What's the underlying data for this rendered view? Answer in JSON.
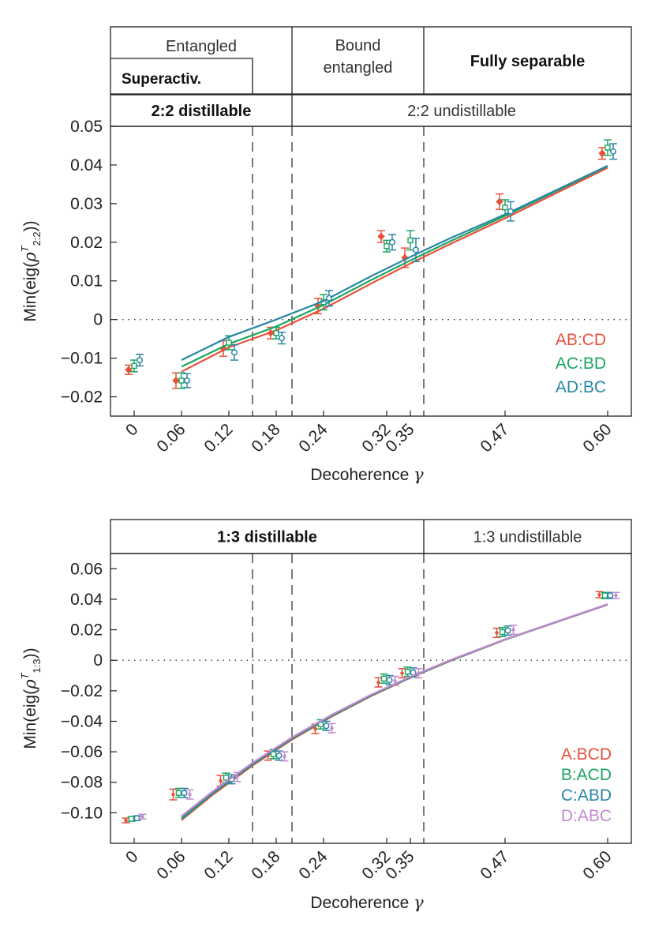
{
  "colors": {
    "red": "#e8503a",
    "green": "#1aa561",
    "teal": "#2a86a5",
    "purple": "#c48ad0",
    "frame": "#222222"
  },
  "chart_data": [
    {
      "type": "scatter",
      "title": "",
      "xlabel": "Decoherence",
      "xlabel_symbol": "γ",
      "ylabel": "Min(eig(ρ^T 2:2))",
      "ylabel_parts": {
        "prefix": "Min(eig(",
        "rho": "ρ",
        "sup": "T",
        "sub": "2:2",
        "suffix": "))"
      },
      "xlim": [
        -0.03,
        0.63
      ],
      "ylim": [
        -0.025,
        0.05
      ],
      "x_ticks": [
        0,
        0.06,
        0.12,
        0.18,
        0.24,
        0.32,
        0.35,
        0.47,
        0.6
      ],
      "x_tick_labels": [
        "0",
        "0.06",
        "0.12",
        "0.18",
        "0.24",
        "0.32",
        "0.35",
        "0.47",
        "0.60"
      ],
      "y_ticks": [
        -0.02,
        -0.01,
        0,
        0.01,
        0.02,
        0.03,
        0.04,
        0.05
      ],
      "y_tick_labels": [
        "−0.02",
        "−0.01",
        "0",
        "0.01",
        "0.02",
        "0.03",
        "0.04",
        "0.05"
      ],
      "zero_line": true,
      "vertical_dashed_lines": [
        0.15,
        0.2,
        0.367
      ],
      "regions_top": [
        {
          "label": "Entangled",
          "bold": false,
          "x0": -0.03,
          "x1": 0.2
        },
        {
          "label": "Bound entangled",
          "bold": false,
          "x0": 0.2,
          "x1": 0.367
        },
        {
          "label": "Fully separable",
          "bold": true,
          "x0": 0.367,
          "x1": 0.63
        }
      ],
      "regions_sub": [
        {
          "label": "Superactiv.",
          "bold": true,
          "x0": -0.03,
          "x1": 0.15
        }
      ],
      "regions_bottom": [
        {
          "label": "2:2 distillable",
          "bold": true,
          "x0": -0.03,
          "x1": 0.2
        },
        {
          "label": "2:2 undistillable",
          "bold": false,
          "x0": 0.2,
          "x1": 0.63
        }
      ],
      "legend_position": "lower-right",
      "series": [
        {
          "name": "AB:CD",
          "color": "#e8503a",
          "marker": "diamond",
          "x": [
            0,
            0.06,
            0.12,
            0.18,
            0.24,
            0.32,
            0.35,
            0.47,
            0.6
          ],
          "y": [
            -0.013,
            -0.0158,
            -0.0075,
            -0.0035,
            0.0035,
            0.0215,
            0.016,
            0.0305,
            0.043
          ],
          "err": [
            0.0012,
            0.002,
            0.002,
            0.0015,
            0.002,
            0.0015,
            0.0025,
            0.002,
            0.0015
          ],
          "fit_x": [
            0.06,
            0.12,
            0.18,
            0.24,
            0.3,
            0.35,
            0.4,
            0.47,
            0.6
          ],
          "fit_y": [
            -0.0135,
            -0.0072,
            -0.0028,
            0.0028,
            0.0093,
            0.0145,
            0.0195,
            0.0262,
            0.0393
          ]
        },
        {
          "name": "AC:BD",
          "color": "#1aa561",
          "marker": "square",
          "x": [
            0,
            0.06,
            0.12,
            0.18,
            0.24,
            0.32,
            0.35,
            0.47,
            0.6
          ],
          "y": [
            -0.012,
            -0.0158,
            -0.006,
            -0.0035,
            0.0045,
            0.019,
            0.0205,
            0.029,
            0.0445
          ],
          "err": [
            0.0015,
            0.002,
            0.0018,
            0.0015,
            0.002,
            0.0015,
            0.0025,
            0.002,
            0.002
          ],
          "fit_x": [
            0.06,
            0.12,
            0.18,
            0.24,
            0.3,
            0.35,
            0.4,
            0.47,
            0.6
          ],
          "fit_y": [
            -0.0122,
            -0.0063,
            -0.0018,
            0.0038,
            0.0102,
            0.0153,
            0.0202,
            0.0268,
            0.0397
          ]
        },
        {
          "name": "AD:BC",
          "color": "#2a86a5",
          "marker": "circle",
          "x": [
            0,
            0.06,
            0.12,
            0.18,
            0.24,
            0.32,
            0.35,
            0.47,
            0.6
          ],
          "y": [
            -0.0105,
            -0.0158,
            -0.0085,
            -0.0048,
            0.0055,
            0.02,
            0.018,
            0.028,
            0.0435
          ],
          "err": [
            0.0015,
            0.0018,
            0.002,
            0.0015,
            0.002,
            0.002,
            0.003,
            0.0025,
            0.002
          ],
          "fit_x": [
            0.06,
            0.12,
            0.18,
            0.24,
            0.3,
            0.35,
            0.4,
            0.47,
            0.6
          ],
          "fit_y": [
            -0.0105,
            -0.0045,
            0.0,
            0.0048,
            0.0112,
            0.0162,
            0.021,
            0.0272,
            0.0398
          ]
        }
      ]
    },
    {
      "type": "scatter",
      "title": "",
      "xlabel": "Decoherence",
      "xlabel_symbol": "γ",
      "ylabel": "Min(eig(ρ^T 1:3))",
      "ylabel_parts": {
        "prefix": "Min(eig(",
        "rho": "ρ",
        "sup": "T",
        "sub": "1:3",
        "suffix": "))"
      },
      "xlim": [
        -0.03,
        0.63
      ],
      "ylim": [
        -0.12,
        0.07
      ],
      "x_ticks": [
        0,
        0.06,
        0.12,
        0.18,
        0.24,
        0.32,
        0.35,
        0.47,
        0.6
      ],
      "x_tick_labels": [
        "0",
        "0.06",
        "0.12",
        "0.18",
        "0.24",
        "0.32",
        "0.35",
        "0.47",
        "0.60"
      ],
      "y_ticks": [
        -0.1,
        -0.08,
        -0.06,
        -0.04,
        -0.02,
        0,
        0.02,
        0.04,
        0.06
      ],
      "y_tick_labels": [
        "−0.10",
        "−0.08",
        "−0.06",
        "−0.04",
        "−0.02",
        "0",
        "0.02",
        "0.04",
        "0.06"
      ],
      "zero_line": true,
      "vertical_dashed_lines": [
        0.15,
        0.2,
        0.367
      ],
      "regions_top": [],
      "regions_sub": [],
      "regions_bottom": [
        {
          "label": "1:3 distillable",
          "bold": true,
          "x0": -0.03,
          "x1": 0.367
        },
        {
          "label": "1:3 undistillable",
          "bold": false,
          "x0": 0.367,
          "x1": 0.63
        }
      ],
      "legend_position": "lower-right",
      "series": [
        {
          "name": "A:BCD",
          "color": "#e8503a",
          "marker": "dot",
          "x": [
            0,
            0.06,
            0.12,
            0.18,
            0.24,
            0.32,
            0.35,
            0.47,
            0.6
          ],
          "y": [
            -0.105,
            -0.088,
            -0.079,
            -0.0625,
            -0.045,
            -0.0145,
            -0.0085,
            0.018,
            0.043
          ],
          "err": [
            0.0015,
            0.0035,
            0.0035,
            0.003,
            0.003,
            0.003,
            0.003,
            0.003,
            0.002
          ],
          "fit_x": [
            0.06,
            0.1,
            0.15,
            0.2,
            0.25,
            0.3,
            0.35,
            0.4,
            0.47,
            0.6
          ],
          "fit_y": [
            -0.1048,
            -0.088,
            -0.069,
            -0.052,
            -0.037,
            -0.0235,
            -0.0115,
            -0.0005,
            0.0135,
            0.0365
          ]
        },
        {
          "name": "B:ACD",
          "color": "#1aa561",
          "marker": "square",
          "x": [
            0,
            0.06,
            0.12,
            0.18,
            0.24,
            0.32,
            0.35,
            0.47,
            0.6
          ],
          "y": [
            -0.104,
            -0.087,
            -0.077,
            -0.0615,
            -0.042,
            -0.012,
            -0.0075,
            0.0185,
            0.0425
          ],
          "err": [
            0.0015,
            0.003,
            0.003,
            0.003,
            0.003,
            0.003,
            0.003,
            0.003,
            0.002
          ],
          "fit_x": [
            0.06,
            0.1,
            0.15,
            0.2,
            0.25,
            0.3,
            0.35,
            0.4,
            0.47,
            0.6
          ],
          "fit_y": [
            -0.104,
            -0.0872,
            -0.0683,
            -0.0514,
            -0.0366,
            -0.0232,
            -0.0113,
            -0.0004,
            0.0136,
            0.0366
          ]
        },
        {
          "name": "C:ABD",
          "color": "#2a86a5",
          "marker": "circle",
          "x": [
            0,
            0.06,
            0.12,
            0.18,
            0.24,
            0.32,
            0.35,
            0.47,
            0.6
          ],
          "y": [
            -0.1035,
            -0.087,
            -0.078,
            -0.0625,
            -0.043,
            -0.013,
            -0.008,
            0.0195,
            0.0425
          ],
          "err": [
            0.0015,
            0.003,
            0.003,
            0.003,
            0.003,
            0.003,
            0.003,
            0.003,
            0.002
          ],
          "fit_x": [
            0.06,
            0.1,
            0.15,
            0.2,
            0.25,
            0.3,
            0.35,
            0.4,
            0.47,
            0.6
          ],
          "fit_y": [
            -0.1032,
            -0.0866,
            -0.0678,
            -0.051,
            -0.0362,
            -0.0229,
            -0.011,
            -0.0002,
            0.0137,
            0.0367
          ]
        },
        {
          "name": "D:ABC",
          "color": "#c48ad0",
          "marker": "dot",
          "x": [
            0,
            0.06,
            0.12,
            0.18,
            0.24,
            0.32,
            0.35,
            0.47,
            0.6
          ],
          "y": [
            -0.1025,
            -0.088,
            -0.0765,
            -0.063,
            -0.0445,
            -0.0135,
            -0.0085,
            0.02,
            0.0425
          ],
          "err": [
            0.0015,
            0.003,
            0.003,
            0.003,
            0.003,
            0.003,
            0.003,
            0.003,
            0.002
          ],
          "fit_x": [
            0.06,
            0.1,
            0.15,
            0.2,
            0.25,
            0.3,
            0.35,
            0.4,
            0.47,
            0.6
          ],
          "fit_y": [
            -0.1022,
            -0.0858,
            -0.0672,
            -0.0505,
            -0.0358,
            -0.0226,
            -0.0108,
            0.0,
            0.0138,
            0.0368
          ]
        }
      ]
    }
  ]
}
